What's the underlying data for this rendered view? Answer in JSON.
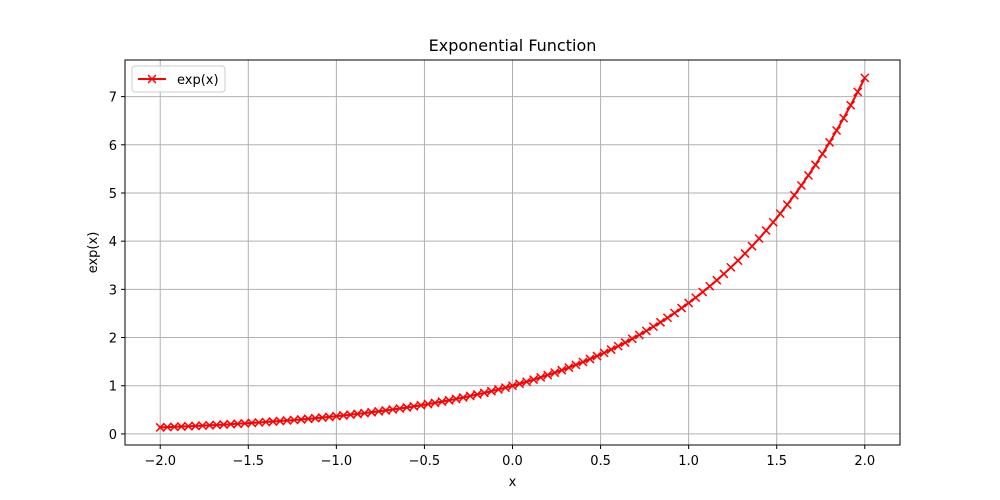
{
  "chart_data": {
    "type": "line",
    "title": "Exponential Function",
    "xlabel": "x",
    "ylabel": "exp(x)",
    "xlim": [
      -2.2,
      2.2
    ],
    "ylim": [
      -0.23,
      7.76
    ],
    "xticks": [
      -2.0,
      -1.5,
      -1.0,
      -0.5,
      0.0,
      0.5,
      1.0,
      1.5,
      2.0
    ],
    "xtick_labels": [
      "−2.0",
      "−1.5",
      "−1.0",
      "−0.5",
      "0.0",
      "0.5",
      "1.0",
      "1.5",
      "2.0"
    ],
    "yticks": [
      0,
      1,
      2,
      3,
      4,
      5,
      6,
      7
    ],
    "ytick_labels": [
      "0",
      "1",
      "2",
      "3",
      "4",
      "5",
      "6",
      "7"
    ],
    "grid": true,
    "legend": "top-left",
    "series": [
      {
        "name": "exp(x)",
        "color": "#ff0000",
        "marker": "x",
        "x": [
          -2.0,
          -1.96,
          -1.92,
          -1.88,
          -1.84,
          -1.8,
          -1.76,
          -1.72,
          -1.68,
          -1.64,
          -1.6,
          -1.56,
          -1.52,
          -1.48,
          -1.44,
          -1.4,
          -1.36,
          -1.32,
          -1.28,
          -1.24,
          -1.2,
          -1.16,
          -1.12,
          -1.08,
          -1.04,
          -1.0,
          -0.96,
          -0.92,
          -0.88,
          -0.84,
          -0.8,
          -0.76,
          -0.72,
          -0.68,
          -0.64,
          -0.6,
          -0.56,
          -0.52,
          -0.48,
          -0.44,
          -0.4,
          -0.36,
          -0.32,
          -0.28,
          -0.24,
          -0.2,
          -0.16,
          -0.12,
          -0.08,
          -0.04,
          0.0,
          0.04,
          0.08,
          0.12,
          0.16,
          0.2,
          0.24,
          0.28,
          0.32,
          0.36,
          0.4,
          0.44,
          0.48,
          0.52,
          0.56,
          0.6,
          0.64,
          0.68,
          0.72,
          0.76,
          0.8,
          0.84,
          0.88,
          0.92,
          0.96,
          1.0,
          1.04,
          1.08,
          1.12,
          1.16,
          1.2,
          1.24,
          1.28,
          1.32,
          1.36,
          1.4,
          1.44,
          1.48,
          1.52,
          1.56,
          1.6,
          1.64,
          1.68,
          1.72,
          1.76,
          1.8,
          1.84,
          1.88,
          1.92,
          1.96,
          2.0
        ],
        "y": [
          0.135,
          0.141,
          0.147,
          0.153,
          0.159,
          0.165,
          0.172,
          0.179,
          0.186,
          0.194,
          0.202,
          0.21,
          0.219,
          0.228,
          0.237,
          0.247,
          0.257,
          0.267,
          0.278,
          0.289,
          0.301,
          0.313,
          0.326,
          0.34,
          0.353,
          0.368,
          0.383,
          0.399,
          0.415,
          0.432,
          0.449,
          0.468,
          0.487,
          0.507,
          0.527,
          0.549,
          0.571,
          0.595,
          0.619,
          0.644,
          0.67,
          0.698,
          0.726,
          0.756,
          0.787,
          0.819,
          0.852,
          0.887,
          0.923,
          0.961,
          1.0,
          1.041,
          1.083,
          1.127,
          1.174,
          1.221,
          1.271,
          1.323,
          1.377,
          1.433,
          1.492,
          1.553,
          1.616,
          1.682,
          1.751,
          1.822,
          1.896,
          1.974,
          2.054,
          2.138,
          2.226,
          2.316,
          2.411,
          2.509,
          2.612,
          2.718,
          2.829,
          2.945,
          3.065,
          3.19,
          3.32,
          3.456,
          3.597,
          3.743,
          3.896,
          4.055,
          4.221,
          4.393,
          4.572,
          4.759,
          4.953,
          5.155,
          5.366,
          5.585,
          5.812,
          6.05,
          6.297,
          6.554,
          6.821,
          7.099,
          7.389
        ]
      }
    ]
  }
}
